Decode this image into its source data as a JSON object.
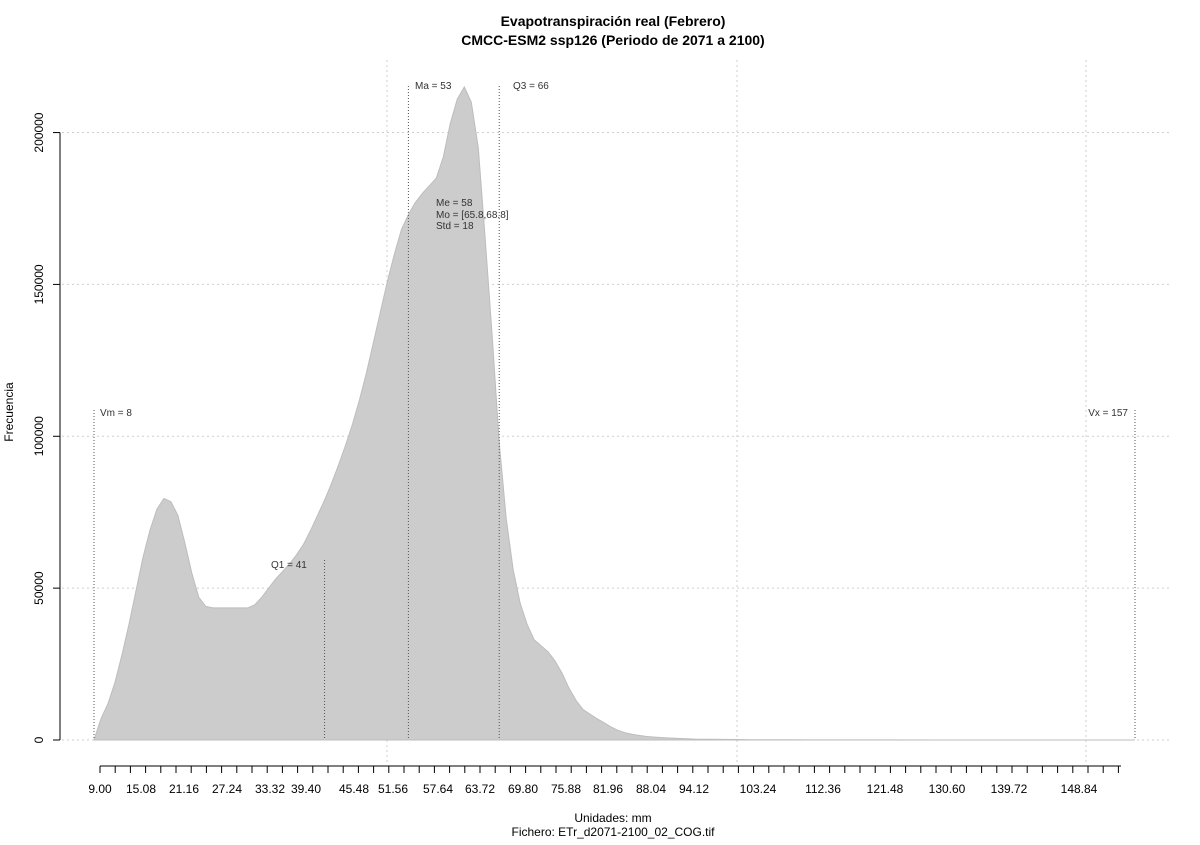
{
  "chart_data": {
    "type": "area",
    "title": "Evapotranspiración real (Febrero)",
    "subtitle": "CMCC-ESM2 ssp126 (Periodo de 2071 a 2100)",
    "xlabel": "Unidades: mm",
    "caption": "Fichero: ETr_d2071-2100_02_COG.tif",
    "ylabel": "Frecuencia",
    "xlim": [
      8,
      157
    ],
    "ylim": [
      0,
      215000
    ],
    "x_tick_labels": [
      "9.00",
      "15.08",
      "21.16",
      "27.24",
      "33.32",
      "39.40",
      "45.48",
      "51.56",
      "57.64",
      "63.72",
      "69.80",
      "75.88",
      "81.96",
      "88.04",
      "94.12",
      "103.24",
      "112.36",
      "121.48",
      "130.60",
      "139.72",
      "148.84"
    ],
    "y_ticks": [
      0,
      50000,
      100000,
      150000,
      200000
    ],
    "grid": true,
    "fill_color": "#cccccc",
    "series": [
      {
        "x": [
          8,
          9,
          10,
          11,
          12,
          13,
          14,
          15,
          16,
          17,
          18,
          19,
          20,
          21,
          22,
          23,
          24,
          25,
          26,
          27,
          28,
          29,
          30,
          31,
          32,
          33,
          34,
          35,
          36,
          37,
          38,
          39,
          40,
          41,
          42,
          43,
          44,
          45,
          46,
          47,
          48,
          49,
          50,
          51,
          52,
          53,
          54,
          55,
          56,
          57,
          58,
          59,
          60,
          61,
          62,
          63,
          64,
          65,
          66,
          67,
          68,
          69,
          70,
          71,
          72,
          73,
          74,
          75,
          76,
          77,
          78,
          79,
          80,
          81,
          82,
          83,
          84,
          85,
          86,
          87,
          88,
          90,
          92,
          94,
          96,
          98,
          100,
          102,
          104,
          106,
          108,
          110,
          115,
          120,
          130,
          140,
          150,
          157
        ],
        "values": [
          0,
          7000,
          12000,
          19000,
          28000,
          38000,
          49000,
          60000,
          69000,
          76000,
          79500,
          78500,
          74000,
          65000,
          55000,
          47000,
          44000,
          43500,
          43500,
          43500,
          43500,
          43500,
          43500,
          44500,
          47000,
          50000,
          53000,
          55500,
          58000,
          61000,
          64500,
          69000,
          74000,
          79000,
          84500,
          90500,
          97000,
          104000,
          112000,
          121000,
          131000,
          141000,
          151000,
          160000,
          168000,
          173000,
          177000,
          180000,
          182500,
          185000,
          192000,
          203000,
          211000,
          215000,
          210000,
          195000,
          165000,
          133000,
          98000,
          73000,
          56000,
          45000,
          38000,
          33000,
          31000,
          29000,
          26000,
          22000,
          17000,
          13000,
          10000,
          8500,
          7000,
          5700,
          4300,
          3200,
          2400,
          1900,
          1500,
          1200,
          1000,
          700,
          500,
          300,
          250,
          200,
          150,
          100,
          80,
          60,
          50,
          40,
          30,
          25,
          15,
          10,
          5,
          0
        ]
      }
    ],
    "annotations": {
      "vm": "Vm = 8",
      "vx": "Vx = 157",
      "q1": "Q1 = 41",
      "ma": "Ma = 53",
      "q3": "Q3 = 66",
      "me": "Me = 58",
      "mo": "Mo = [65.8,68.8]",
      "std": "Std = 18"
    },
    "markers": {
      "vm": 8,
      "vx": 157,
      "q1": 41,
      "ma": 53,
      "q3": 66
    }
  }
}
